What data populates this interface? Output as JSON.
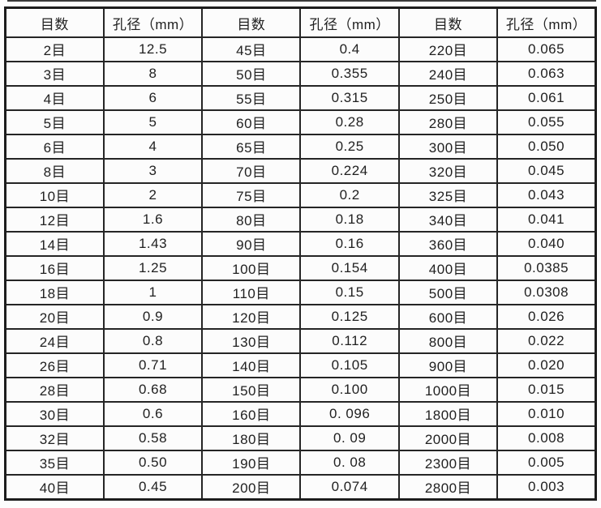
{
  "chart_data": {
    "type": "table",
    "title": "",
    "columns": [
      "目数",
      "孔径（mm）",
      "目数",
      "孔径（mm）",
      "目数",
      "孔径（mm）"
    ],
    "rows": [
      [
        "2目",
        "12.5",
        "45目",
        "0.4",
        "220目",
        "0.065"
      ],
      [
        "3目",
        "8",
        "50目",
        "0.355",
        "240目",
        "0.063"
      ],
      [
        "4目",
        "6",
        "55目",
        "0.315",
        "250目",
        "0.061"
      ],
      [
        "5目",
        "5",
        "60目",
        "0.28",
        "280目",
        "0.055"
      ],
      [
        "6目",
        "4",
        "65目",
        "0.25",
        "300目",
        "0.050"
      ],
      [
        "8目",
        "3",
        "70目",
        "0.224",
        "320目",
        "0.045"
      ],
      [
        "10目",
        "2",
        "75目",
        "0.2",
        "325目",
        "0.043"
      ],
      [
        "12目",
        "1.6",
        "80目",
        "0.18",
        "340目",
        "0.041"
      ],
      [
        "14目",
        "1.43",
        "90目",
        "0.16",
        "360目",
        "0.040"
      ],
      [
        "16目",
        "1.25",
        "100目",
        "0.154",
        "400目",
        "0.0385"
      ],
      [
        "18目",
        "1",
        "110目",
        "0.15",
        "500目",
        "0.0308"
      ],
      [
        "20目",
        "0.9",
        "120目",
        "0.125",
        "600目",
        "0.026"
      ],
      [
        "24目",
        "0.8",
        "130目",
        "0.112",
        "800目",
        "0.022"
      ],
      [
        "26目",
        "0.71",
        "140目",
        "0.105",
        "900目",
        "0.020"
      ],
      [
        "28目",
        "0.68",
        "150目",
        "0.100",
        "1000目",
        "0.015"
      ],
      [
        "30目",
        "0.6",
        "160目",
        "0. 096",
        "1800目",
        "0.010"
      ],
      [
        "32目",
        "0.58",
        "180目",
        "0. 09",
        "2000目",
        "0.008"
      ],
      [
        "35目",
        "0.50",
        "190目",
        "0. 08",
        "2300目",
        "0.005"
      ],
      [
        "40目",
        "0.45",
        "200目",
        "0.074",
        "2800目",
        "0.003"
      ]
    ]
  },
  "styles": {
    "border_color": "#1d1d1d",
    "text_color": "#212121",
    "background": "#fdfdfd"
  }
}
